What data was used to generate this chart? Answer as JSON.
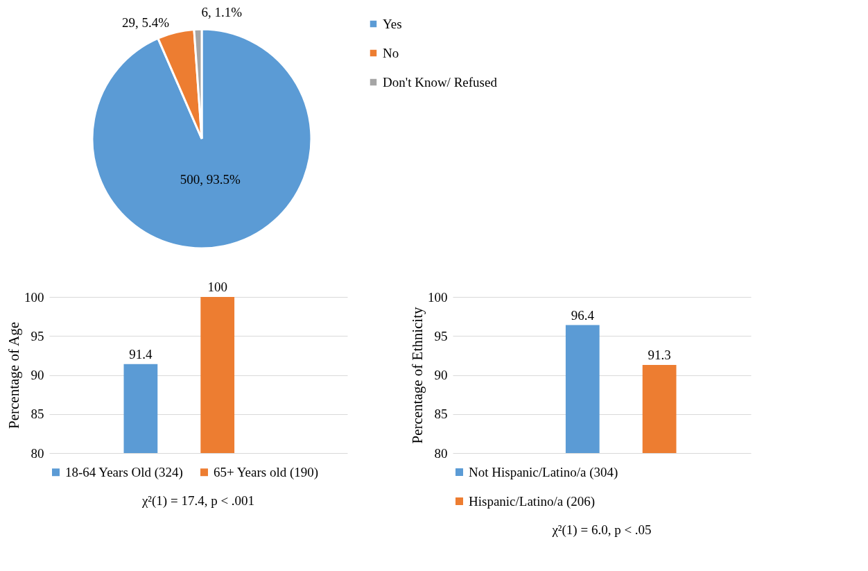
{
  "chart_data": [
    {
      "type": "pie",
      "categories": [
        "Yes",
        "No",
        "Don't Know/ Refused"
      ],
      "values": [
        500,
        29,
        6
      ],
      "colors": [
        "#5b9bd5",
        "#ed7d31",
        "#a5a5a5"
      ],
      "value_labels": [
        "500, 93.5%",
        "29, 5.4%",
        "6, 1.1%"
      ],
      "legend": "right"
    },
    {
      "type": "bar",
      "categories": [
        null
      ],
      "series": [
        {
          "name": "18-64 Years Old (324)",
          "color": "#5b9bd5",
          "values": [
            91.4
          ]
        },
        {
          "name": "65+ Years old (190)",
          "color": "#ed7d31",
          "values": [
            100
          ]
        }
      ],
      "ylabel": "Percentage of Age",
      "ylim": [
        80,
        100
      ],
      "yticks": [
        80,
        85,
        90,
        95,
        100
      ],
      "grid": "y",
      "data_labels": true,
      "legend": "bottom",
      "annotations": [
        "χ²(1) = 17.4, p < .001"
      ]
    },
    {
      "type": "bar",
      "categories": [
        null
      ],
      "series": [
        {
          "name": "Not Hispanic/Latino/a (304)",
          "color": "#5b9bd5",
          "values": [
            96.4
          ]
        },
        {
          "name": "Hispanic/Latino/a (206)",
          "color": "#ed7d31",
          "values": [
            91.3
          ]
        }
      ],
      "ylabel": "Percentage of Ethnicity",
      "ylim": [
        80,
        100
      ],
      "yticks": [
        80,
        85,
        90,
        95,
        100
      ],
      "grid": "y",
      "data_labels": true,
      "legend": "bottom",
      "annotations": [
        "χ²(1) = 6.0, p < .05"
      ]
    }
  ]
}
